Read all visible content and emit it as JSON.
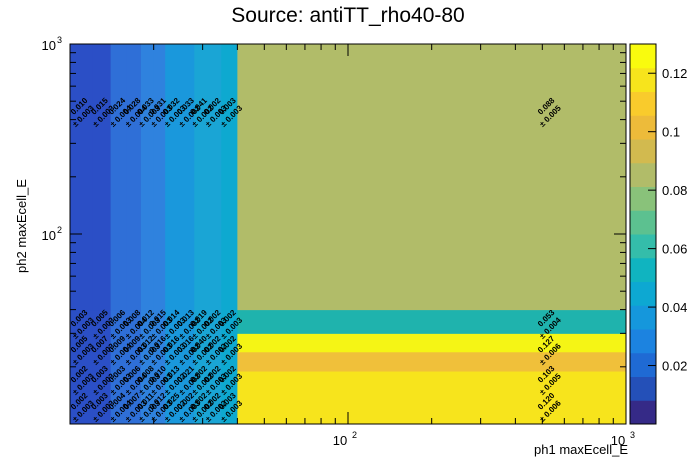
{
  "chart_data": {
    "type": "heatmap",
    "title": "Source: antiTT_rho40-80",
    "xlabel": "ph1 maxEcell_E",
    "ylabel": "ph2 maxEcell_E",
    "x_scale": "log",
    "y_scale": "log",
    "xlim": [
      10,
      1000
    ],
    "ylim": [
      10,
      1000
    ],
    "x_edges": [
      10,
      12,
      14,
      16,
      18,
      20,
      22,
      25,
      28,
      31,
      35,
      40,
      1000
    ],
    "y_edges": [
      10,
      14,
      19,
      24,
      30,
      40,
      1000
    ],
    "x_tick_labels": [
      {
        "value": 100,
        "base": "10",
        "exp": "2"
      },
      {
        "value": 1000,
        "base": "10",
        "exp": "3"
      }
    ],
    "y_tick_labels": [
      {
        "value": 100,
        "base": "10",
        "exp": "2"
      },
      {
        "value": 1000,
        "base": "10",
        "exp": "3"
      }
    ],
    "z_range": [
      0,
      0.13
    ],
    "colorbar_ticks": [
      "0.02",
      "0.04",
      "0.06",
      "0.08",
      "0.1",
      "0.12"
    ],
    "cells": [
      {
        "row": 5,
        "values": [
          0.01,
          0.015,
          0.024,
          0.028,
          0.033,
          0.031,
          0.032,
          0.033,
          0.041,
          0.002,
          0.003,
          0.088
        ],
        "errors": [
          0.003,
          0.003,
          0.004,
          0.004,
          0.003,
          0.003,
          0.003,
          0.002,
          0.002,
          0.003,
          0.003,
          0.005
        ]
      },
      {
        "row": 4,
        "values": [
          0.003,
          0.005,
          0.006,
          0.008,
          0.012,
          0.015,
          0.014,
          0.013,
          0.019,
          0.002,
          0.002,
          0.053
        ],
        "errors": [
          0.003,
          0.003,
          0.003,
          0.004,
          0.003,
          0.003,
          0.003,
          0.002,
          0.002,
          0.003,
          0.003,
          0.004
        ]
      },
      {
        "row": 3,
        "values": [
          0.005,
          0.007,
          0.009,
          0.009,
          0.012,
          0.016,
          0.016,
          0.016,
          0.04,
          0.002,
          0.002,
          0.127
        ],
        "errors": [
          0.003,
          0.003,
          0.004,
          0.003,
          0.003,
          0.003,
          0.003,
          0.002,
          0.002,
          0.002,
          0.003,
          0.006
        ]
      },
      {
        "row": 2,
        "values": [
          0.002,
          0.003,
          0.003,
          0.006,
          0.008,
          0.01,
          0.013,
          0.021,
          0.002,
          0.002,
          0.002,
          0.103
        ],
        "errors": [
          0.003,
          0.003,
          0.003,
          0.004,
          0.003,
          0.003,
          0.002,
          0.002,
          0.002,
          0.003,
          0.003,
          0.005
        ]
      },
      {
        "row": 1,
        "values": [
          0.002,
          0.003,
          0.004,
          0.007,
          0.011,
          0.012,
          0.025,
          0.002,
          0.002,
          0.002,
          0.003,
          0.12
        ],
        "errors": [
          0.003,
          0.003,
          0.004,
          0.003,
          0.003,
          0.003,
          0.002,
          0.003,
          0.002,
          0.002,
          0.003,
          0.006
        ]
      }
    ],
    "column_fills": [
      "#2b4fc6",
      "#2b4fc6",
      "#2f6fd7",
      "#2f6fd7",
      "#2f82de",
      "#2f82de",
      "#1a98dc",
      "#1a98dc",
      "#1aa5d5",
      "#1aa5d5",
      "#0ea9d0",
      "#b1bc69"
    ],
    "band_fills": {
      "row4": "#1fb3ad",
      "row3": "#f5f515",
      "row2": "#f0c03a",
      "row1": "#f7e41c"
    },
    "grid": false
  }
}
